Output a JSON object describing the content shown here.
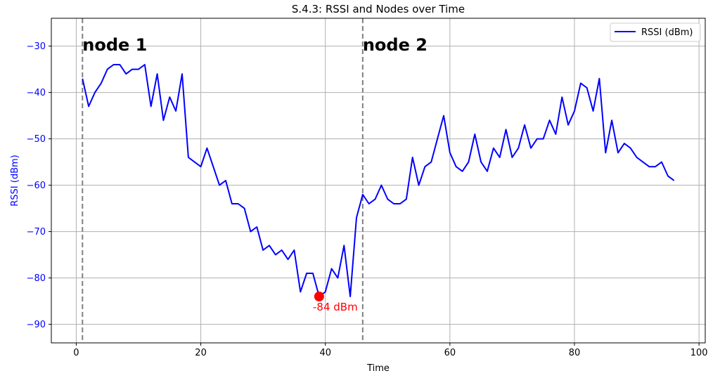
{
  "chart_data": {
    "type": "line",
    "title": "S.4.3: RSSI and Nodes over Time",
    "xlabel": "Time",
    "ylabel": "RSSI (dBm)",
    "xlim": [
      -4,
      101
    ],
    "ylim": [
      -94,
      -24
    ],
    "xticks": [
      0,
      20,
      40,
      60,
      80,
      100
    ],
    "yticks": [
      -30,
      -40,
      -50,
      -60,
      -70,
      -80,
      -90
    ],
    "xtick_labels": [
      "0",
      "20",
      "40",
      "60",
      "80",
      "100"
    ],
    "ytick_labels": [
      "−30",
      "−40",
      "−50",
      "−60",
      "−70",
      "−80",
      "−90"
    ],
    "grid": true,
    "legend_position": "upper right",
    "series": [
      {
        "name": "RSSI (dBm)",
        "color": "#0000ff",
        "x": [
          1,
          2,
          3,
          4,
          5,
          6,
          7,
          8,
          9,
          10,
          11,
          12,
          13,
          14,
          15,
          16,
          17,
          18,
          19,
          20,
          21,
          22,
          23,
          24,
          25,
          26,
          27,
          28,
          29,
          30,
          31,
          32,
          33,
          34,
          35,
          36,
          37,
          38,
          39,
          40,
          41,
          42,
          43,
          44,
          45,
          46,
          47,
          48,
          49,
          50,
          51,
          52,
          53,
          54,
          55,
          56,
          57,
          58,
          59,
          60,
          61,
          62,
          63,
          64,
          65,
          66,
          67,
          68,
          69,
          70,
          71,
          72,
          73,
          74,
          75,
          76,
          77,
          78,
          79,
          80,
          81,
          82,
          83,
          84,
          85,
          86,
          87,
          88,
          89,
          90,
          91,
          92,
          93,
          94,
          95,
          96
        ],
        "y": [
          -37,
          -43,
          -40,
          -38,
          -35,
          -34,
          -34,
          -36,
          -35,
          -35,
          -34,
          -43,
          -36,
          -46,
          -41,
          -44,
          -36,
          -54,
          -55,
          -56,
          -52,
          -56,
          -60,
          -59,
          -64,
          -64,
          -65,
          -70,
          -69,
          -74,
          -73,
          -75,
          -74,
          -76,
          -74,
          -83,
          -79,
          -79,
          -84,
          -83,
          -78,
          -80,
          -73,
          -84,
          -67,
          -62,
          -64,
          -63,
          -60,
          -63,
          -64,
          -64,
          -63,
          -54,
          -60,
          -56,
          -55,
          -50,
          -45,
          -53,
          -56,
          -57,
          -55,
          -49,
          -55,
          -57,
          -52,
          -54,
          -48,
          -54,
          -52,
          -47,
          -52,
          -50,
          -50,
          -46,
          -49,
          -41,
          -47,
          -44,
          -38,
          -39,
          -44,
          -37,
          -53,
          -46,
          -53,
          -51,
          -52,
          -54,
          -55,
          -56,
          -56,
          -55,
          -58,
          -59
        ]
      }
    ],
    "vlines": [
      {
        "x": 1,
        "label": "node 1",
        "color": "#808080"
      },
      {
        "x": 46,
        "label": "node 2",
        "color": "#808080"
      }
    ],
    "annotations": [
      {
        "x": 39,
        "y": -84,
        "label": "-84 dBm",
        "color": "#ff0000"
      }
    ]
  }
}
